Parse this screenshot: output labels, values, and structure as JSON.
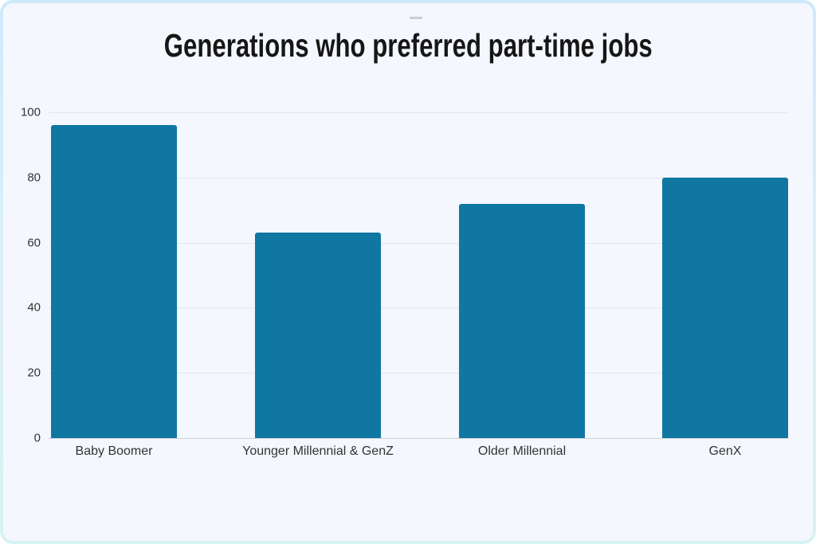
{
  "card": {
    "background": "#f4f7fd",
    "border_top_color": "#cfe9fc",
    "border_bottom_color": "#d7f2f2",
    "accent": "#0f77a2"
  },
  "chart_data": {
    "type": "bar",
    "title": "Generations who preferred part-time jobs",
    "categories": [
      "Baby Boomer",
      "Younger Millennial & GenZ",
      "Older Millennial",
      "GenX"
    ],
    "values": [
      96,
      63,
      72,
      80
    ],
    "xlabel": "",
    "ylabel": "",
    "ylim": [
      0,
      100
    ],
    "yticks": [
      0,
      20,
      40,
      60,
      80,
      100
    ],
    "grid": "horizontal-only",
    "legend": "none",
    "bar_color": "#0f77a2",
    "gridline_color": "#e3e6eb",
    "axis_line_color": "#ccd1d8",
    "tick_label_color": "#333333",
    "title_color": "#161616"
  }
}
